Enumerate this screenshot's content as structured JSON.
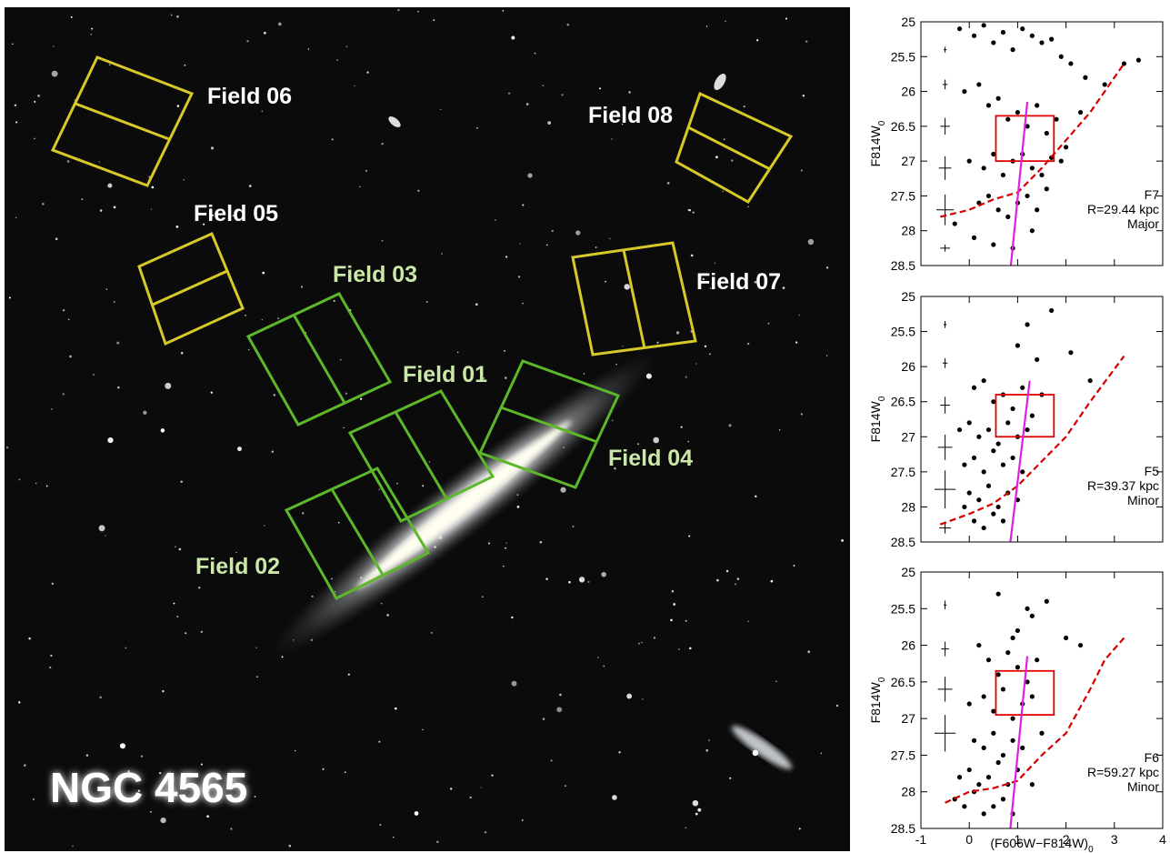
{
  "image": {
    "title": "NGC 4565",
    "fields": [
      "Field 06",
      "Field 05",
      "Field 03",
      "Field 01",
      "Field 04",
      "Field 02",
      "Field 07",
      "Field 08"
    ]
  },
  "chart_data": [
    {
      "type": "scatter",
      "ylabel": "F814W",
      "ylabel_sub": "0",
      "xlim": [
        -1,
        4
      ],
      "ylim": [
        28.5,
        25
      ],
      "xticks": [
        -1,
        0,
        1,
        2,
        3,
        4
      ],
      "yticks": [
        25,
        25.5,
        26,
        26.5,
        27,
        27.5,
        28,
        28.5
      ],
      "show_xtick_labels": false,
      "annotations": [
        "F7",
        "R=29.44 kpc",
        "Major"
      ],
      "points": {
        "color": "#000000",
        "x": [
          -0.2,
          0.1,
          0.3,
          0.5,
          0.7,
          0.9,
          1.1,
          1.3,
          1.5,
          1.7,
          1.9,
          2.1,
          2.4,
          2.8,
          3.2,
          3.5,
          -0.1,
          0.2,
          0.4,
          0.6,
          0.8,
          1.0,
          1.2,
          1.4,
          1.6,
          1.8,
          2.0,
          2.3,
          0.0,
          0.3,
          0.5,
          0.7,
          0.9,
          1.1,
          1.3,
          1.5,
          1.7,
          1.9,
          0.2,
          0.4,
          0.6,
          0.8,
          1.0,
          1.2,
          1.4,
          1.6,
          -0.3,
          0.1,
          0.5,
          0.9,
          1.3
        ],
        "y": [
          25.1,
          25.2,
          25.05,
          25.3,
          25.15,
          25.4,
          25.1,
          25.2,
          25.3,
          25.25,
          25.5,
          25.6,
          25.8,
          25.9,
          25.6,
          25.55,
          26.0,
          25.9,
          26.2,
          26.1,
          26.4,
          26.3,
          26.5,
          26.2,
          26.6,
          26.4,
          26.8,
          26.3,
          27.0,
          27.1,
          26.9,
          27.2,
          27.0,
          26.9,
          27.1,
          27.2,
          26.95,
          27.0,
          27.6,
          27.5,
          27.7,
          27.8,
          27.6,
          27.5,
          27.7,
          27.4,
          27.9,
          28.1,
          28.2,
          28.25,
          28.0
        ]
      },
      "errors": {
        "color": "#000000",
        "x": [
          -0.5,
          -0.5,
          -0.5,
          -0.5,
          -0.5,
          -0.5
        ],
        "y": [
          25.4,
          25.9,
          26.5,
          27.1,
          27.7,
          28.25
        ],
        "xerr": [
          0.03,
          0.05,
          0.1,
          0.13,
          0.18,
          0.1
        ],
        "yerr": [
          0.04,
          0.07,
          0.12,
          0.17,
          0.22,
          0.05
        ]
      },
      "box": {
        "color": "#e00000",
        "x": [
          0.55,
          1.75
        ],
        "y": [
          26.35,
          27.0
        ]
      },
      "limit": {
        "color": "#d40000",
        "x": [
          -0.6,
          0,
          0.5,
          1,
          1.5,
          2,
          2.5,
          3.2
        ],
        "y": [
          27.8,
          27.7,
          27.55,
          27.45,
          27.1,
          26.7,
          26.3,
          25.6
        ]
      },
      "fiducial": {
        "color": "#e020e0",
        "x": [
          0.86,
          1.2
        ],
        "y": [
          28.5,
          26.15
        ]
      }
    },
    {
      "type": "scatter",
      "ylabel": "F814W",
      "ylabel_sub": "0",
      "xlim": [
        -1,
        4
      ],
      "ylim": [
        28.5,
        25
      ],
      "xticks": [
        -1,
        0,
        1,
        2,
        3,
        4
      ],
      "yticks": [
        25,
        25.5,
        26,
        26.5,
        27,
        27.5,
        28,
        28.5
      ],
      "show_xtick_labels": false,
      "annotations": [
        "F5",
        "R=39.37 kpc",
        "Minor"
      ],
      "points": {
        "color": "#000000",
        "x": [
          0.1,
          0.3,
          0.5,
          0.7,
          0.9,
          1.1,
          1.3,
          1.5,
          -0.2,
          0.0,
          0.2,
          0.4,
          0.6,
          0.8,
          1.0,
          1.2,
          -0.1,
          0.1,
          0.3,
          0.5,
          0.7,
          0.9,
          1.1,
          0.0,
          0.2,
          0.4,
          0.6,
          0.8,
          1.0,
          0.1,
          0.3,
          0.5,
          0.7,
          1.0,
          1.2,
          1.4,
          1.7,
          2.1,
          2.5,
          -0.1
        ],
        "y": [
          26.3,
          26.2,
          26.5,
          26.4,
          26.6,
          26.3,
          26.7,
          26.4,
          26.9,
          26.8,
          27.0,
          26.9,
          27.1,
          26.8,
          27.0,
          26.9,
          27.4,
          27.3,
          27.5,
          27.2,
          27.4,
          27.3,
          27.5,
          27.8,
          27.9,
          27.7,
          28.0,
          27.8,
          27.9,
          28.2,
          28.3,
          28.1,
          28.2,
          25.7,
          25.4,
          25.9,
          25.2,
          25.8,
          26.2,
          28.0
        ]
      },
      "errors": {
        "color": "#000000",
        "x": [
          -0.5,
          -0.5,
          -0.5,
          -0.5,
          -0.5,
          -0.5
        ],
        "y": [
          25.4,
          25.95,
          26.55,
          27.15,
          27.75,
          28.3
        ],
        "xerr": [
          0.03,
          0.05,
          0.1,
          0.15,
          0.22,
          0.12
        ],
        "yerr": [
          0.05,
          0.07,
          0.12,
          0.18,
          0.27,
          0.08
        ]
      },
      "box": {
        "color": "#e00000",
        "x": [
          0.55,
          1.75
        ],
        "y": [
          26.4,
          27.0
        ]
      },
      "limit": {
        "color": "#d40000",
        "x": [
          -0.6,
          0,
          0.5,
          1,
          1.5,
          2,
          2.5,
          3.2
        ],
        "y": [
          28.25,
          28.1,
          27.95,
          27.7,
          27.35,
          27.0,
          26.5,
          25.85
        ]
      },
      "fiducial": {
        "color": "#e020e0",
        "x": [
          0.85,
          1.25
        ],
        "y": [
          28.5,
          26.2
        ]
      }
    },
    {
      "type": "scatter",
      "ylabel": "F814W",
      "ylabel_sub": "0",
      "xlabel": "(F606W−F814W)",
      "xlabel_sub": "0",
      "xlim": [
        -1,
        4
      ],
      "ylim": [
        28.5,
        25
      ],
      "xticks": [
        -1,
        0,
        1,
        2,
        3,
        4
      ],
      "yticks": [
        25,
        25.5,
        26,
        26.5,
        27,
        27.5,
        28,
        28.5
      ],
      "show_xtick_labels": true,
      "annotations": [
        "F6",
        "R=59.27 kpc",
        "Minor"
      ],
      "points": {
        "color": "#000000",
        "x": [
          0.2,
          0.4,
          0.6,
          0.8,
          1.0,
          1.2,
          1.4,
          0.0,
          0.3,
          0.5,
          0.7,
          0.9,
          1.1,
          1.3,
          0.1,
          0.3,
          0.5,
          0.7,
          0.9,
          1.1,
          1.5,
          -0.2,
          0.0,
          0.2,
          0.4,
          0.6,
          0.8,
          1.0,
          1.3,
          -0.3,
          -0.1,
          0.1,
          0.3,
          0.5,
          0.7,
          0.9,
          0.6,
          1.0,
          1.3,
          1.6,
          2.0,
          2.3,
          1.2,
          0.9
        ],
        "y": [
          26.0,
          26.2,
          26.4,
          26.1,
          26.3,
          26.5,
          26.2,
          26.8,
          26.7,
          26.9,
          26.6,
          27.0,
          26.8,
          26.7,
          27.3,
          27.4,
          27.2,
          27.5,
          27.3,
          27.4,
          27.2,
          27.8,
          27.7,
          27.9,
          27.8,
          27.6,
          27.9,
          27.7,
          27.9,
          28.1,
          28.2,
          28.0,
          28.3,
          28.2,
          28.1,
          28.3,
          25.3,
          25.8,
          25.6,
          25.4,
          25.9,
          26.0,
          25.5,
          25.9
        ]
      },
      "errors": {
        "color": "#000000",
        "x": [
          -0.5,
          -0.5,
          -0.5,
          -0.5
        ],
        "y": [
          25.45,
          26.05,
          26.6,
          27.2
        ],
        "xerr": [
          0.03,
          0.08,
          0.15,
          0.22
        ],
        "yerr": [
          0.06,
          0.1,
          0.17,
          0.25
        ]
      },
      "box": {
        "color": "#e00000",
        "x": [
          0.55,
          1.75
        ],
        "y": [
          26.35,
          26.95
        ]
      },
      "limit": {
        "color": "#d40000",
        "x": [
          -0.5,
          0,
          0.5,
          1,
          1.5,
          2,
          2.5,
          2.8,
          3.2
        ],
        "y": [
          28.15,
          28.0,
          27.95,
          27.85,
          27.5,
          27.2,
          26.6,
          26.2,
          25.9
        ]
      },
      "fiducial": {
        "color": "#e020e0",
        "x": [
          0.85,
          1.2
        ],
        "y": [
          28.5,
          26.15
        ]
      }
    }
  ]
}
